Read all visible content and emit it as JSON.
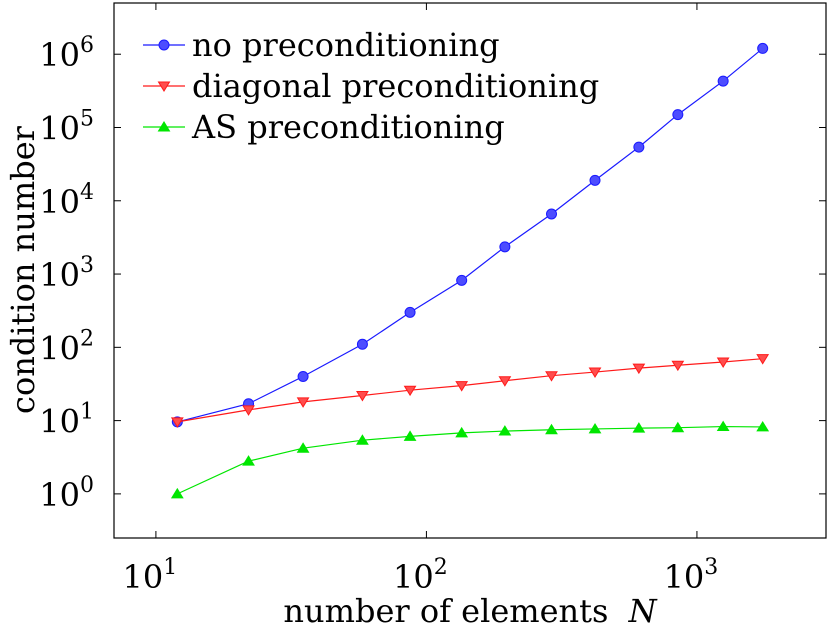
{
  "chart_data": {
    "type": "line",
    "x_scale": "log",
    "y_scale": "log",
    "xlabel": "number of elements",
    "xlabel_var": "N",
    "ylabel": "condition number",
    "xlim": [
      7,
      3000
    ],
    "ylim": [
      0.25,
      5000000
    ],
    "grid": false,
    "legend_position": "top-left",
    "x_ticks": [
      {
        "base": "10",
        "exp": "1",
        "value": 10
      },
      {
        "base": "10",
        "exp": "2",
        "value": 100
      },
      {
        "base": "10",
        "exp": "3",
        "value": 1000
      }
    ],
    "y_ticks": [
      {
        "base": "10",
        "exp": "0",
        "value": 1
      },
      {
        "base": "10",
        "exp": "1",
        "value": 10
      },
      {
        "base": "10",
        "exp": "2",
        "value": 100
      },
      {
        "base": "10",
        "exp": "3",
        "value": 1000
      },
      {
        "base": "10",
        "exp": "4",
        "value": 10000
      },
      {
        "base": "10",
        "exp": "5",
        "value": 100000
      },
      {
        "base": "10",
        "exp": "6",
        "value": 1000000
      }
    ],
    "x": [
      12,
      22,
      35,
      58,
      87,
      135,
      195,
      290,
      420,
      610,
      850,
      1250,
      1750
    ],
    "series": [
      {
        "name": "no preconditioning",
        "color": "#1a1aff",
        "fill": "#4d4dff",
        "marker": "circle",
        "values": [
          9.6,
          17,
          40,
          110,
          300,
          820,
          2350,
          6600,
          19000,
          54000,
          150000,
          430000,
          1200000
        ]
      },
      {
        "name": "diagonal preconditioning",
        "color": "#ff1a1a",
        "fill": "#ff4d4d",
        "marker": "triangle-down",
        "values": [
          9.6,
          14,
          18,
          22,
          26,
          30,
          35,
          41,
          46,
          52,
          57,
          63,
          70
        ]
      },
      {
        "name": "AS preconditioning",
        "color": "#00e600",
        "fill": "#00e600",
        "marker": "triangle-up",
        "values": [
          1.0,
          2.8,
          4.2,
          5.4,
          6.1,
          6.8,
          7.2,
          7.5,
          7.7,
          7.9,
          8.0,
          8.3,
          8.2
        ]
      }
    ]
  }
}
